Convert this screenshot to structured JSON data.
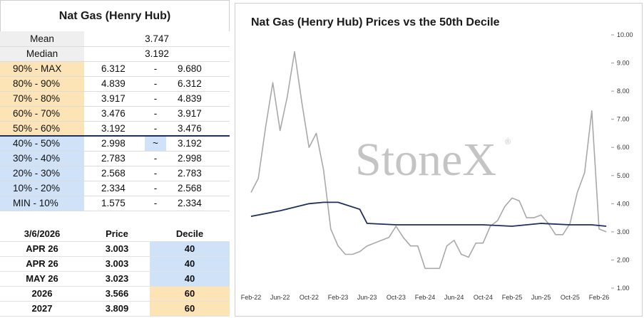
{
  "left": {
    "title": "Nat Gas (Henry Hub)",
    "mean_label": "Mean",
    "mean_value": "3.747",
    "median_label": "Median",
    "median_value": "3.192",
    "buckets": [
      {
        "label": "90% - MAX",
        "low": "6.312",
        "sep": "-",
        "high": "9.680"
      },
      {
        "label": "80% - 90%",
        "low": "4.839",
        "sep": "-",
        "high": "6.312"
      },
      {
        "label": "70% - 80%",
        "low": "3.917",
        "sep": "-",
        "high": "4.839"
      },
      {
        "label": "60% - 70%",
        "low": "3.476",
        "sep": "-",
        "high": "3.917"
      },
      {
        "label": "50% - 60%",
        "low": "3.192",
        "sep": "-",
        "high": "3.476"
      },
      {
        "label": "40% - 50%",
        "low": "2.998",
        "sep": "~",
        "high": "3.192"
      },
      {
        "label": "30% - 40%",
        "low": "2.783",
        "sep": "-",
        "high": "2.998"
      },
      {
        "label": "20% - 30%",
        "low": "2.568",
        "sep": "-",
        "high": "2.783"
      },
      {
        "label": "10% - 20%",
        "low": "2.334",
        "sep": "-",
        "high": "2.568"
      },
      {
        "label": "MIN - 10%",
        "low": "1.575",
        "sep": "-",
        "high": "2.334"
      }
    ],
    "contracts": {
      "header": {
        "date": "3/6/2026",
        "price": "Price",
        "decile": "Decile"
      },
      "rows": [
        {
          "name": "APR 26",
          "price": "3.003",
          "decile": "40"
        },
        {
          "name": "APR 26",
          "price": "3.003",
          "decile": "40"
        },
        {
          "name": "MAY 26",
          "price": "3.023",
          "decile": "40"
        },
        {
          "name": "2026",
          "price": "3.566",
          "decile": "60"
        },
        {
          "name": "2027",
          "price": "3.809",
          "decile": "60"
        }
      ]
    }
  },
  "colors": {
    "price_line": "#a9a9a9",
    "decile_line": "#1f2f5c",
    "upper_fill": "#fce4b6",
    "lower_fill": "#cfe2f7"
  },
  "watermark": {
    "text": "StoneX",
    "mark": "®"
  },
  "chart_data": {
    "type": "line",
    "title": "Nat Gas (Henry Hub) Prices vs the 50th Decile",
    "xlabel": "",
    "ylabel": "",
    "x_ticks": [
      "Feb-22",
      "Jun-22",
      "Oct-22",
      "Feb-23",
      "Jun-23",
      "Oct-23",
      "Feb-24",
      "Jun-24",
      "Oct-24",
      "Feb-25",
      "Jun-25",
      "Oct-25",
      "Feb-26"
    ],
    "y_ticks": [
      "1.00",
      "2.00",
      "3.00",
      "4.00",
      "5.00",
      "6.00",
      "7.00",
      "8.00",
      "9.00",
      "10.00"
    ],
    "ylim": [
      1,
      10
    ],
    "y_axis_side": "right",
    "grid": false,
    "legend": "none",
    "series": [
      {
        "name": "",
        "style": "gray",
        "points": [
          [
            "Feb-22",
            4.4
          ],
          [
            "Mar-22",
            4.9
          ],
          [
            "Apr-22",
            6.7
          ],
          [
            "May-22",
            8.3
          ],
          [
            "Jun-22",
            6.6
          ],
          [
            "Jul-22",
            7.8
          ],
          [
            "Aug-22",
            9.4
          ],
          [
            "Sep-22",
            7.6
          ],
          [
            "Oct-22",
            6.0
          ],
          [
            "Nov-22",
            6.5
          ],
          [
            "Dec-22",
            5.2
          ],
          [
            "Jan-23",
            3.1
          ],
          [
            "Feb-23",
            2.5
          ],
          [
            "Mar-23",
            2.2
          ],
          [
            "Apr-23",
            2.2
          ],
          [
            "May-23",
            2.3
          ],
          [
            "Jun-23",
            2.5
          ],
          [
            "Jul-23",
            2.6
          ],
          [
            "Aug-23",
            2.7
          ],
          [
            "Sep-23",
            2.8
          ],
          [
            "Oct-23",
            3.2
          ],
          [
            "Nov-23",
            2.8
          ],
          [
            "Dec-23",
            2.5
          ],
          [
            "Jan-24",
            2.5
          ],
          [
            "Feb-24",
            1.7
          ],
          [
            "Mar-24",
            1.7
          ],
          [
            "Apr-24",
            1.7
          ],
          [
            "May-24",
            2.5
          ],
          [
            "Jun-24",
            2.7
          ],
          [
            "Jul-24",
            2.2
          ],
          [
            "Aug-24",
            2.1
          ],
          [
            "Sep-24",
            2.6
          ],
          [
            "Oct-24",
            2.6
          ],
          [
            "Nov-24",
            3.2
          ],
          [
            "Dec-24",
            3.4
          ],
          [
            "Jan-25",
            3.9
          ],
          [
            "Feb-25",
            4.2
          ],
          [
            "Mar-25",
            4.1
          ],
          [
            "Apr-25",
            3.5
          ],
          [
            "May-25",
            3.5
          ],
          [
            "Jun-25",
            3.6
          ],
          [
            "Jul-25",
            3.3
          ],
          [
            "Aug-25",
            2.9
          ],
          [
            "Sep-25",
            2.9
          ],
          [
            "Oct-25",
            3.3
          ],
          [
            "Nov-25",
            4.4
          ],
          [
            "Dec-25",
            5.1
          ],
          [
            "Jan-26",
            7.3
          ],
          [
            "Feb-26",
            3.1
          ],
          [
            "Mar-26",
            3.0
          ]
        ]
      },
      {
        "name": "",
        "style": "navy",
        "points": [
          [
            "Feb-22",
            3.55
          ],
          [
            "Jun-22",
            3.75
          ],
          [
            "Oct-22",
            4.0
          ],
          [
            "Dec-22",
            4.05
          ],
          [
            "Feb-23",
            4.05
          ],
          [
            "May-23",
            3.8
          ],
          [
            "Jun-23",
            3.3
          ],
          [
            "Oct-23",
            3.25
          ],
          [
            "Feb-24",
            3.25
          ],
          [
            "Jun-24",
            3.25
          ],
          [
            "Oct-24",
            3.25
          ],
          [
            "Feb-25",
            3.2
          ],
          [
            "Jun-25",
            3.3
          ],
          [
            "Oct-25",
            3.25
          ],
          [
            "Jan-26",
            3.25
          ],
          [
            "Mar-26",
            3.2
          ]
        ]
      }
    ]
  }
}
